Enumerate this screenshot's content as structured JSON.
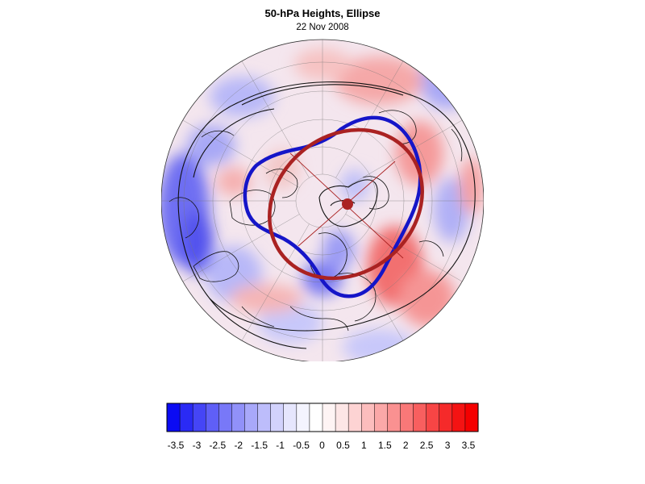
{
  "header": {
    "title": "50-hPa Heights, Ellipse",
    "subtitle": "22 Nov 2008"
  },
  "colorbar": {
    "labels": [
      "-3.5",
      "-3",
      "-2.5",
      "-2",
      "-1.5",
      "-1",
      "-0.5",
      "0",
      "0.5",
      "1",
      "1.5",
      "2",
      "2.5",
      "3",
      "3.5"
    ],
    "colors": [
      "#0b0bf3",
      "#2a2af5",
      "#4545f6",
      "#5f5ff7",
      "#7878f8",
      "#9191f9",
      "#a8a8fa",
      "#bdbdfb",
      "#d2d2fc",
      "#e6e6fd",
      "#f4f4fe",
      "#ffffff",
      "#fef4f4",
      "#fde6e6",
      "#fdd3d3",
      "#fcbdbd",
      "#fba8a8",
      "#fa9191",
      "#f97878",
      "#f85f5f",
      "#f74545",
      "#f52a2a",
      "#f41313",
      "#f50000"
    ]
  },
  "map": {
    "projection": "north-polar-stereographic",
    "ellipse_color": "#aa2222",
    "vortex_edge_color": "#1515c8"
  }
}
